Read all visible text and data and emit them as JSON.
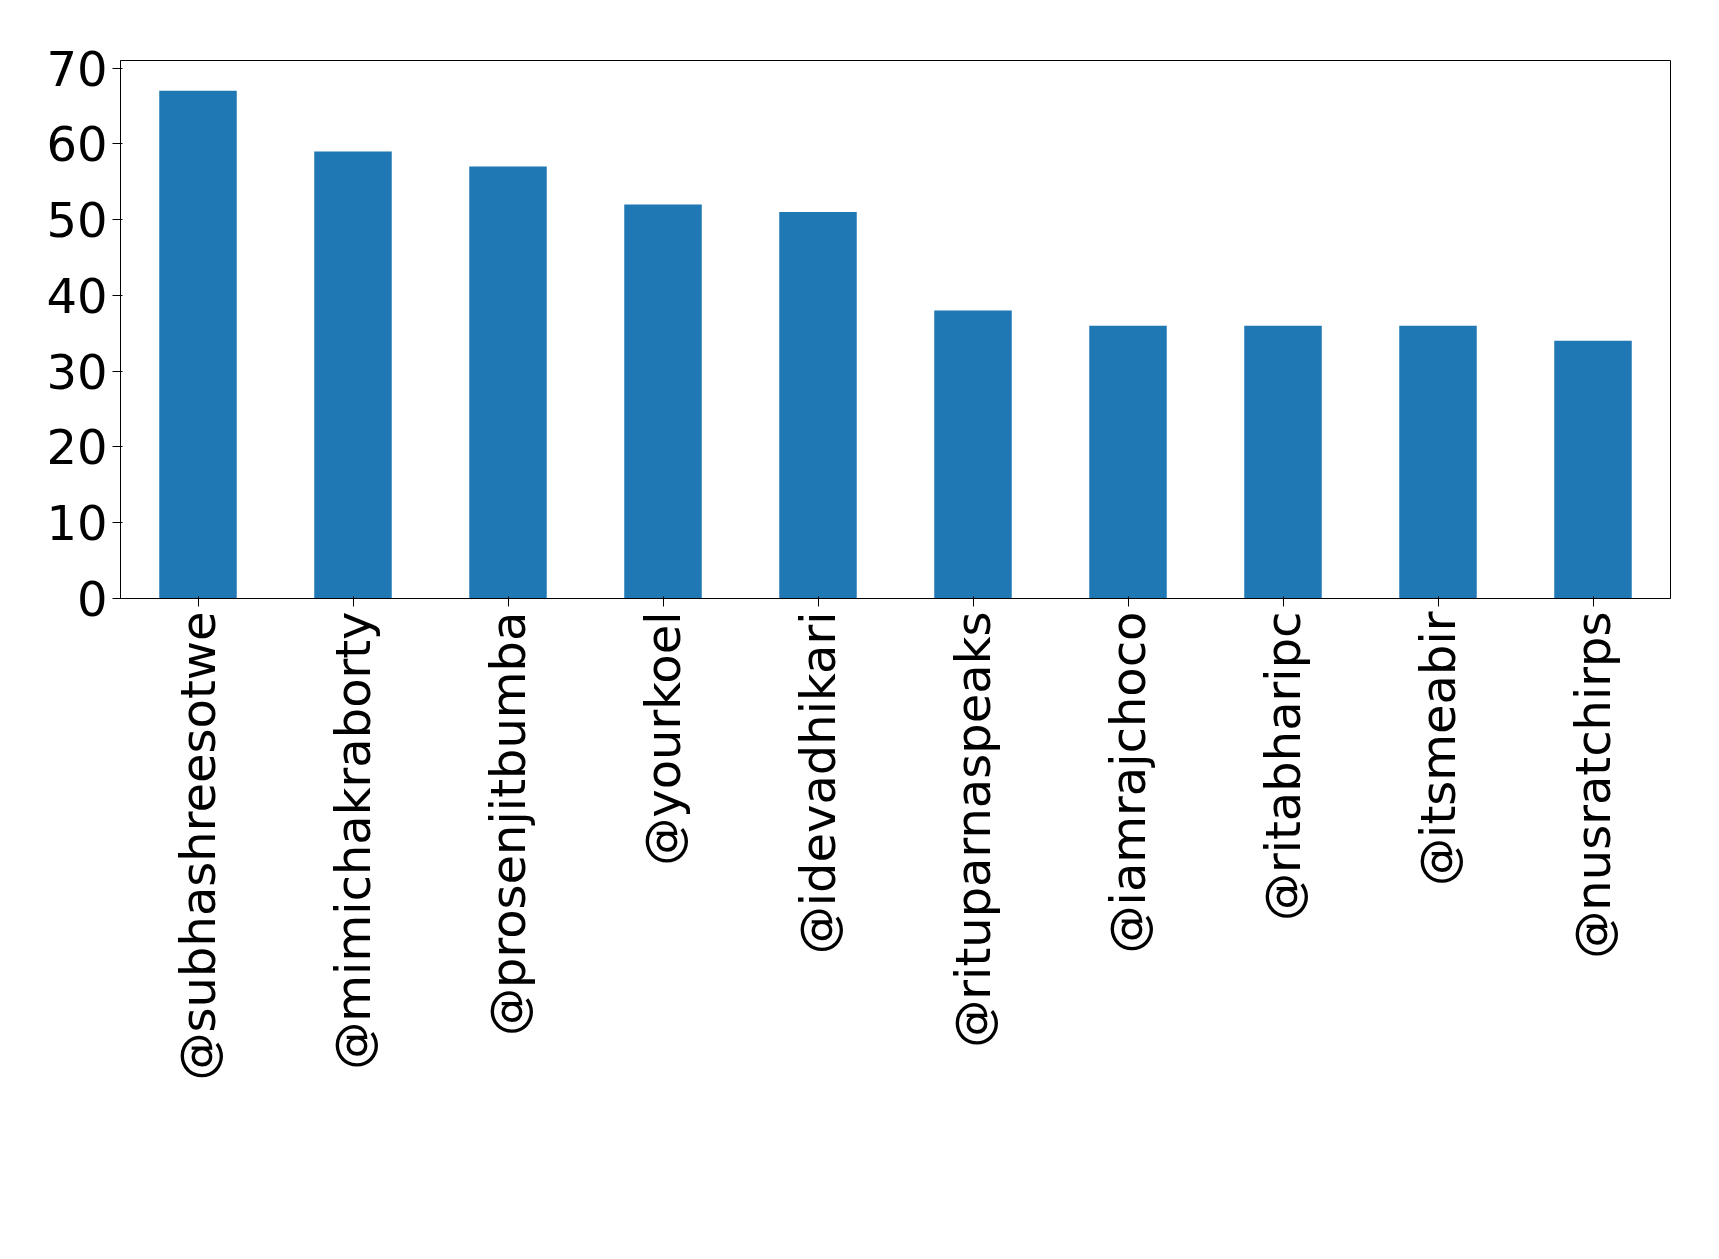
{
  "chart_data": {
    "type": "bar",
    "categories": [
      "@subhashreesotwe",
      "@mimichakraborty",
      "@prosenjitbumba",
      "@yourkoel",
      "@idevadhikari",
      "@rituparnaspeaks",
      "@iamrajchoco",
      "@ritabharipc",
      "@itsmeabir",
      "@nusratchirps"
    ],
    "values": [
      67,
      59,
      57,
      52,
      51,
      38,
      36,
      36,
      36,
      34
    ],
    "color": "#1f77b4",
    "ylim": [
      0,
      71
    ],
    "yticks": [
      0,
      10,
      20,
      30,
      40,
      50,
      60,
      70
    ],
    "grid": false
  }
}
